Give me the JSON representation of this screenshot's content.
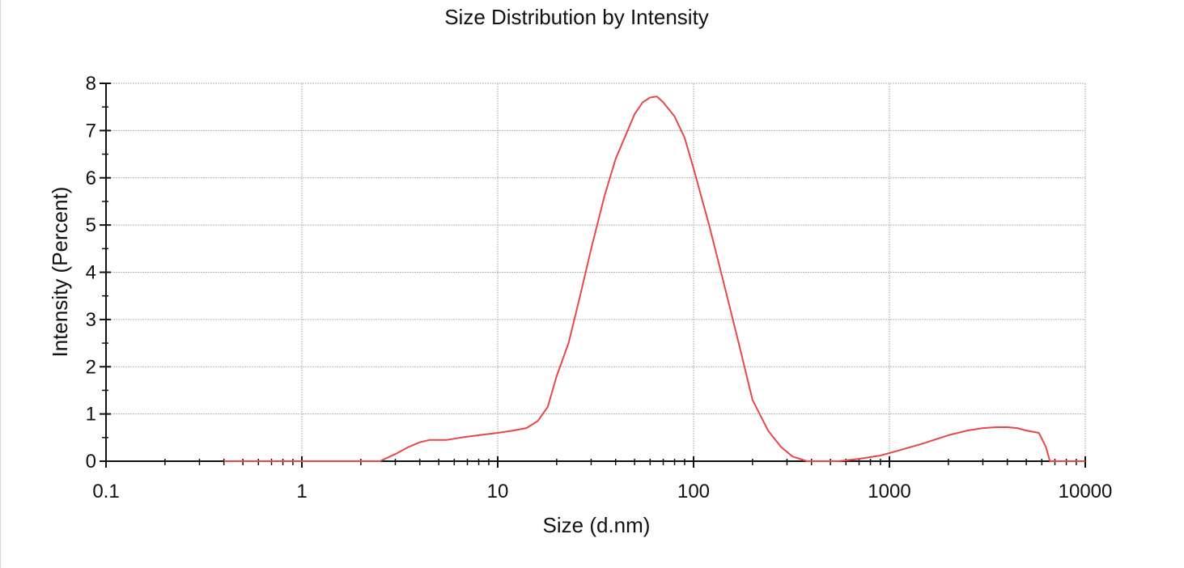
{
  "chart_data": {
    "type": "line",
    "title": "Size Distribution by Intensity",
    "xlabel": "Size (d.nm)",
    "ylabel": "Intensity (Percent)",
    "xscale": "log",
    "xlim": [
      0.1,
      10000
    ],
    "ylim": [
      0,
      8
    ],
    "xticks": [
      "0.1",
      "1",
      "10",
      "100",
      "1000",
      "10000"
    ],
    "yticks": [
      "0",
      "1",
      "2",
      "3",
      "4",
      "5",
      "6",
      "7",
      "8"
    ],
    "grid": true,
    "series": [
      {
        "color": "#e8474a",
        "x": [
          0.4,
          1,
          2,
          2.5,
          3,
          3.5,
          4,
          4.5,
          5.5,
          6.5,
          8,
          10,
          12,
          14,
          16,
          18,
          20,
          23,
          26,
          30,
          35,
          40,
          45,
          50,
          55,
          60,
          65,
          70,
          80,
          90,
          100,
          120,
          140,
          170,
          200,
          240,
          280,
          320,
          380,
          450,
          550,
          700,
          900,
          1100,
          1500,
          2000,
          2500,
          3000,
          3500,
          4000,
          4500,
          5000,
          5800,
          6300,
          6600,
          10000
        ],
        "y": [
          0,
          0,
          0,
          0,
          0.15,
          0.3,
          0.4,
          0.45,
          0.45,
          0.5,
          0.55,
          0.6,
          0.65,
          0.7,
          0.85,
          1.15,
          1.8,
          2.5,
          3.4,
          4.5,
          5.6,
          6.4,
          6.9,
          7.35,
          7.6,
          7.7,
          7.72,
          7.6,
          7.3,
          6.85,
          6.2,
          5.0,
          3.9,
          2.5,
          1.3,
          0.65,
          0.3,
          0.1,
          0,
          0,
          0,
          0.05,
          0.12,
          0.22,
          0.38,
          0.55,
          0.65,
          0.7,
          0.72,
          0.72,
          0.7,
          0.65,
          0.6,
          0.3,
          0,
          0
        ]
      }
    ]
  }
}
